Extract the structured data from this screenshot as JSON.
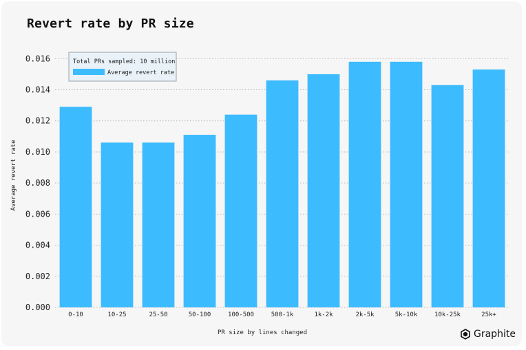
{
  "chart_data": {
    "type": "bar",
    "title": "Revert rate by PR size",
    "xlabel": "PR size by lines changed",
    "ylabel": "Average revert rate",
    "categories": [
      "0-10",
      "10-25",
      "25-50",
      "50-100",
      "100-500",
      "500-1k",
      "1k-2k",
      "2k-5k",
      "5k-10k",
      "10k-25k",
      "25k+"
    ],
    "series": [
      {
        "name": "Average revert rate",
        "values": [
          0.0129,
          0.0106,
          0.0106,
          0.0111,
          0.0124,
          0.0146,
          0.015,
          0.0158,
          0.0158,
          0.0143,
          0.0153
        ]
      }
    ],
    "ylim": [
      0,
      0.0165
    ],
    "yticks": [
      "0.000",
      "0.002",
      "0.004",
      "0.006",
      "0.008",
      "0.010",
      "0.012",
      "0.014",
      "0.016"
    ],
    "grid": "horizontal dotted",
    "legend_position": "top-left",
    "legend_note": "Total PRs sampled: 10 million",
    "bar_color": "#3dbbff"
  },
  "brand": {
    "name": "Graphite"
  }
}
